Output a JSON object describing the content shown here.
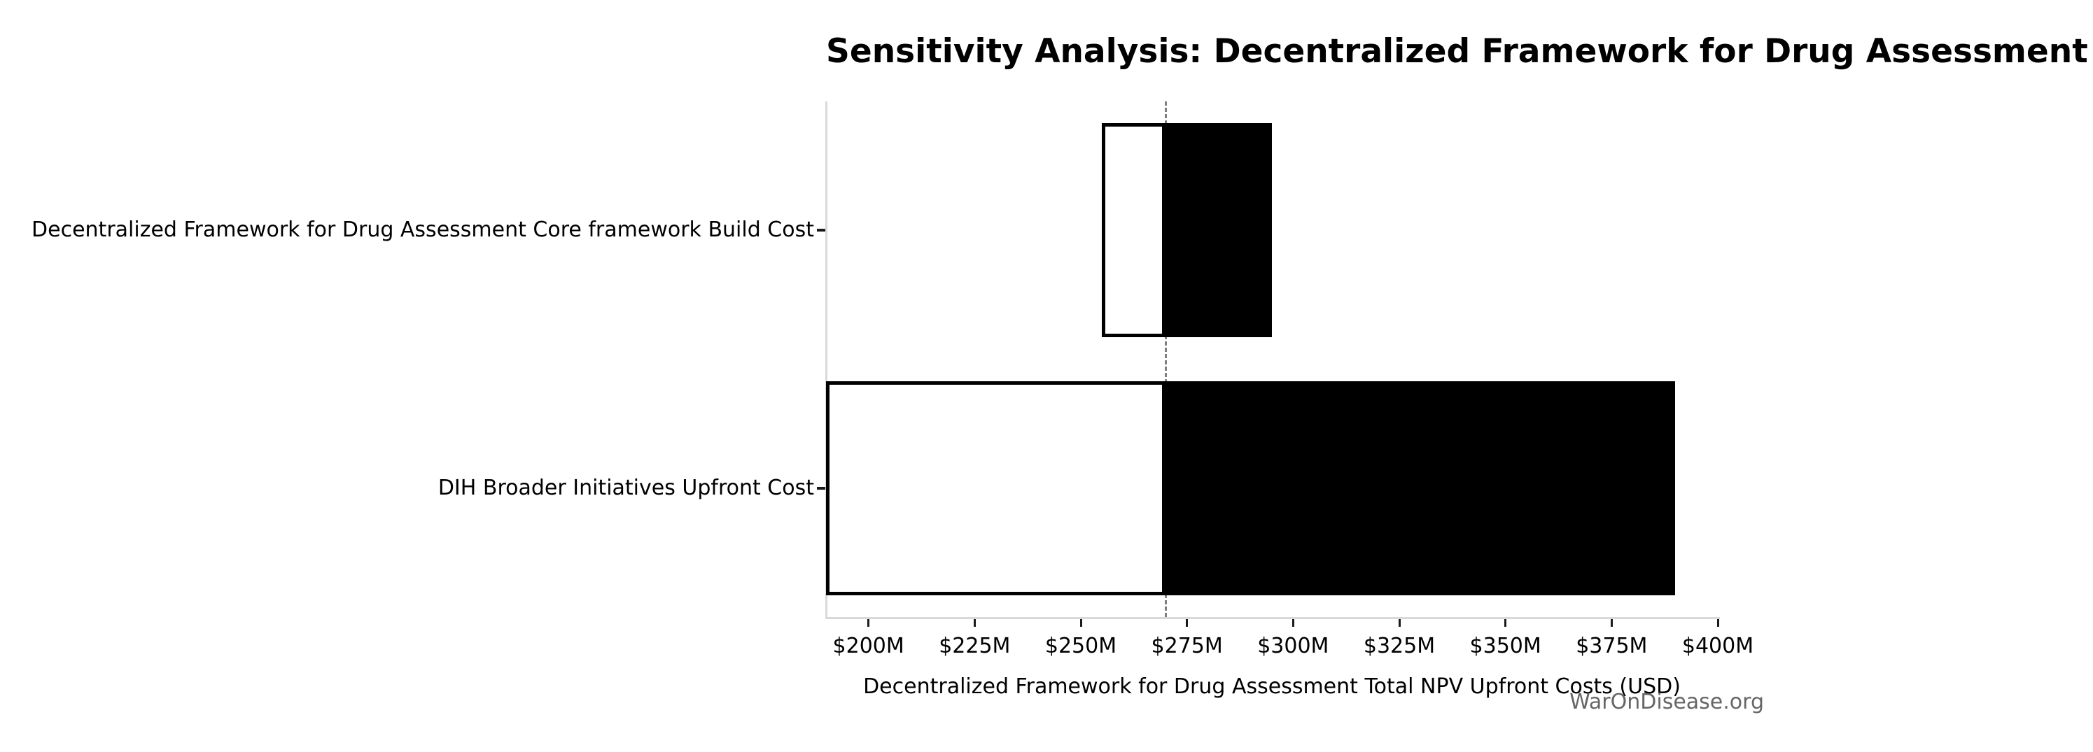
{
  "chart_data": {
    "type": "bar",
    "subtype": "tornado-sensitivity",
    "orientation": "horizontal",
    "title": "Sensitivity Analysis: Decentralized Framework for Drug Assessment Total NPV Upfront Costs",
    "xlabel": "Decentralized Framework for Drug Assessment Total NPV Upfront Costs (USD)",
    "ylabel": "",
    "watermark": "WarOnDisease.org",
    "unit": "USD millions",
    "xlim": [
      190,
      400
    ],
    "x_ticks": [
      200,
      225,
      250,
      275,
      300,
      325,
      350,
      375,
      400
    ],
    "x_tick_labels": [
      "$200M",
      "$225M",
      "$250M",
      "$275M",
      "$300M",
      "$325M",
      "$350M",
      "$375M",
      "$400M"
    ],
    "baseline": 270,
    "rows": [
      {
        "label": "Decentralized Framework for Drug Assessment Core framework Build Cost",
        "low": 255,
        "high": 295,
        "low_clipped_at_axis": false
      },
      {
        "label": "DIH Broader Initiatives Upfront Cost",
        "low": 190,
        "high": 390,
        "low_clipped_at_axis": true
      }
    ],
    "colors": {
      "low_fill": "#ffffff",
      "low_edge": "#000000",
      "high_fill": "#000000",
      "baseline_line": "#7f7f7f",
      "spine": "#d9d9d9",
      "tick": "#1a1a1a",
      "text": "#000000",
      "watermark": "#666666",
      "background": "#ffffff"
    },
    "grid": false,
    "legend": null
  }
}
